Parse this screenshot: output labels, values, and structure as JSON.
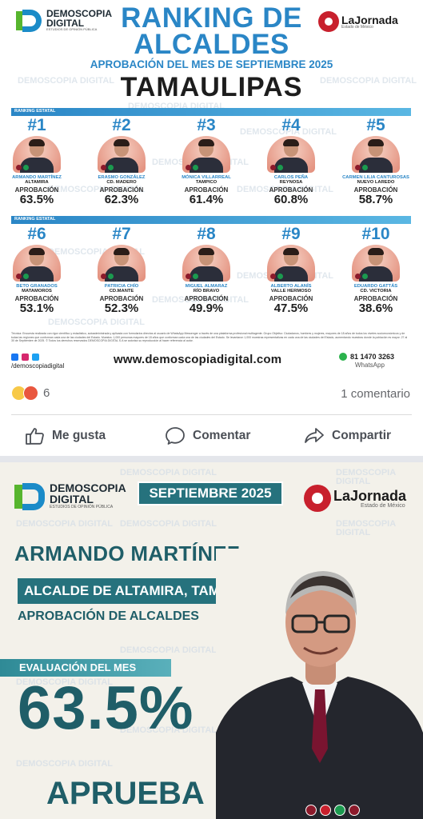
{
  "post1": {
    "watermark": "DEMOSCOPIA DIGITAL",
    "brand": {
      "line1": "DEMOSCOPIA",
      "line2": "DIGITAL",
      "tagline": "ESTUDIOS DE OPINIÓN PÚBLICA"
    },
    "partner": {
      "name": "LaJornada",
      "sub": "Estado de México"
    },
    "title_line1": "RANKING DE",
    "title_line2": "ALCALDES",
    "subtitle": "APROBACIÓN DEL MES DE SEPTIEMBRE 2025",
    "state": "TAMAULIPAS",
    "section_label": "RANKING ESTATAL",
    "approval_label": "APROBACIÓN",
    "candidates": [
      {
        "rank": "#1",
        "name": "ARMANDO MARTÍNEZ",
        "city": "ALTAMIRA",
        "pct": "63.5%"
      },
      {
        "rank": "#2",
        "name": "ERASMO GONZÁLEZ",
        "city": "CD. MADERO",
        "pct": "62.3%"
      },
      {
        "rank": "#3",
        "name": "MÓNICA VILLARREAL",
        "city": "TAMPICO",
        "pct": "61.4%"
      },
      {
        "rank": "#4",
        "name": "CARLOS PEÑA",
        "city": "REYNOSA",
        "pct": "60.8%"
      },
      {
        "rank": "#5",
        "name": "CARMEN LILIA CANTUROSAS",
        "city": "NUEVO LAREDO",
        "pct": "58.7%"
      },
      {
        "rank": "#6",
        "name": "BETO GRANADOS",
        "city": "MATAMOROS",
        "pct": "53.1%"
      },
      {
        "rank": "#7",
        "name": "PATRICIA CHÍO",
        "city": "CD.MANTE",
        "pct": "52.3%"
      },
      {
        "rank": "#8",
        "name": "MIGUEL ALMARAZ",
        "city": "RÍO BRAVO",
        "pct": "49.9%"
      },
      {
        "rank": "#9",
        "name": "ALBERTO ALANÍS",
        "city": "VALLE HERMOSO",
        "pct": "47.5%"
      },
      {
        "rank": "#10",
        "name": "EDUARDO GATTÁS",
        "city": "CD. VICTORIA",
        "pct": "38.6%"
      }
    ],
    "footnote": "Técnica: Encuesta realizada con rigor científico y estadístico, autoadministrada y aplicada con formularios directos al usuario de WhatsApp Messenger a través de una plataforma profesional multiagente. Grupo Objetivo: Ciudadanos, hombres y mujeres, mayores de 18 años de todos los niveles socioeconómicos y de todas las regiones que conforman cada una de las ciudades del Estado. Muestra: 1,000 personas mayores de 18 años que conforman cada una de las ciudades del Estado. Se levantaron 1,000 muestras representativas en cada una de las ciudades del Estado, aumentando muestras donde la población es mayor. 27 al 30 de Septiembre de 2025. © Todos los derechos reservados DEMOSCOPIA DIGITAL S.A se autoriza su reproducción al hacer referencia al autor.",
    "handle": "/demoscopiadigital",
    "website": "www.demoscopiadigital.com",
    "phone": "81 1470 3263",
    "phone_label": "WhatsApp"
  },
  "feedback": {
    "reaction_count": "6",
    "comments": "1 comentario",
    "like": "Me gusta",
    "comment": "Comentar",
    "share": "Compartir"
  },
  "post2": {
    "brand": {
      "line1": "DEMOSCOPIA",
      "line2": "DIGITAL",
      "tagline": "ESTUDIOS DE OPINIÓN PÚBLICA"
    },
    "partner": {
      "name": "LaJornada",
      "sub": "Estado de México"
    },
    "month": "SEPTIEMBRE 2025",
    "name": "ARMANDO MARTÍNEZ",
    "role": "ALCALDE DE ALTAMIRA, TAMPS.",
    "approval": "APROBACIÓN DE ALCALDES",
    "eval_label": "EVALUACIÓN DEL MES",
    "percent": "63.5%",
    "verdict": "APRUEBA"
  },
  "colors": {
    "accent": "#2a86c6",
    "teal": "#26727d",
    "text": "#1d1d1d",
    "green": "#57b52e",
    "red": "#c8202d"
  }
}
